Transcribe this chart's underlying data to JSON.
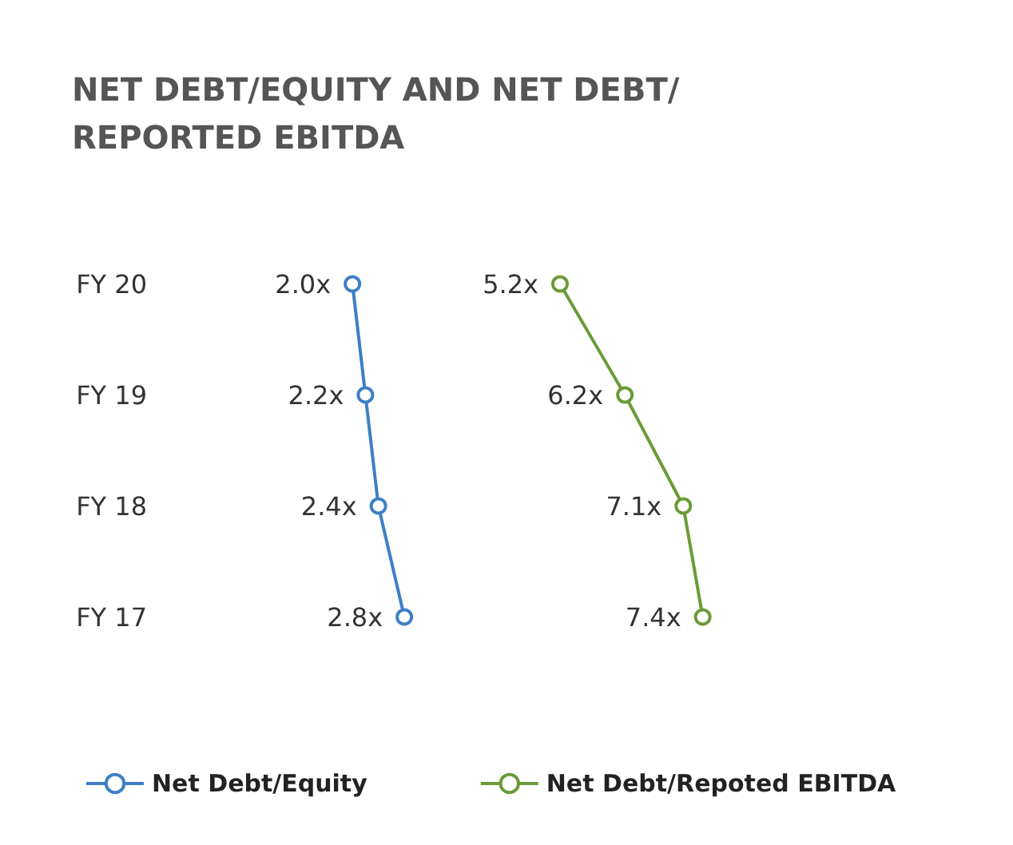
{
  "chart_data": {
    "type": "line",
    "title": "NET DEBT/EQUITY AND NET DEBT/ REPORTED EBITDA",
    "orientation": "horizontal",
    "categories": [
      "FY 20",
      "FY 19",
      "FY 18",
      "FY 17"
    ],
    "series": [
      {
        "name": "Net Debt/Equity",
        "color": "#3d7fc6",
        "values": [
          2.0,
          2.2,
          2.4,
          2.8
        ],
        "value_labels": [
          "2.0x",
          "2.2x",
          "2.4x",
          "2.8x"
        ]
      },
      {
        "name": "Net Debt/Repoted EBITDA",
        "color": "#6b9b37",
        "values": [
          5.2,
          6.2,
          7.1,
          7.4
        ],
        "value_labels": [
          "5.2x",
          "6.2x",
          "7.1x",
          "7.4x"
        ]
      }
    ],
    "marker": "circle",
    "line_style": "solid",
    "grid": false,
    "legend": "bottom left",
    "tick_labels": "y"
  }
}
